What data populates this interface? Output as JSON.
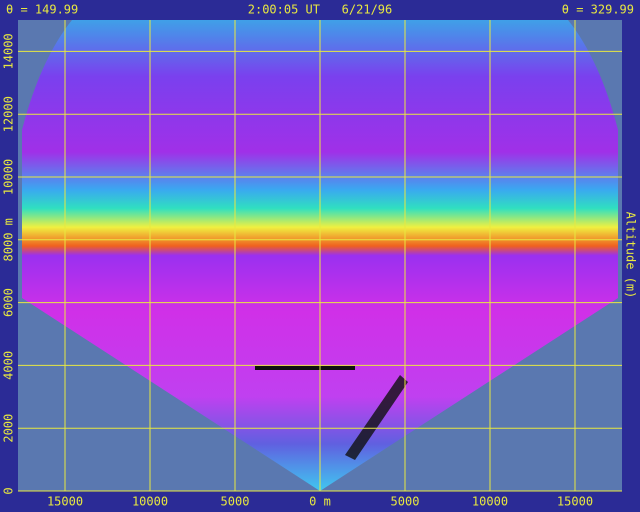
{
  "chart_data": {
    "type": "lidar-scan",
    "header_left": "θ = 149.99",
    "header_center": "2:00:05 UT   6/21/96",
    "header_right": "θ = 329.99",
    "y_label": "Altitude (m)",
    "xlim": [
      -17765,
      17765
    ],
    "ylim": [
      0,
      15000
    ],
    "xticks": [
      {
        "value": -15000,
        "label": "15000"
      },
      {
        "value": -10000,
        "label": "10000"
      },
      {
        "value": -5000,
        "label": "5000"
      },
      {
        "value": 0,
        "label": "0 m"
      },
      {
        "value": 5000,
        "label": "5000"
      },
      {
        "value": 10000,
        "label": "10000"
      },
      {
        "value": 15000,
        "label": "15000"
      }
    ],
    "yticks": [
      0,
      2000,
      4000,
      6000,
      {
        "value": 8000,
        "label": "8000 m"
      },
      10000,
      12000,
      14000
    ],
    "grid": true,
    "grid_color": "#e8e840"
  }
}
